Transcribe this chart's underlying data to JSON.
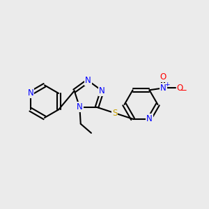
{
  "bg_color": "#ebebeb",
  "bond_color": "#000000",
  "N_color": "#0000ff",
  "S_color": "#c8a000",
  "O_color": "#ff0000",
  "line_width": 1.5,
  "font_size": 8.5,
  "font_size_charge": 6.5,
  "xlim": [
    0,
    10
  ],
  "ylim": [
    0,
    10
  ]
}
